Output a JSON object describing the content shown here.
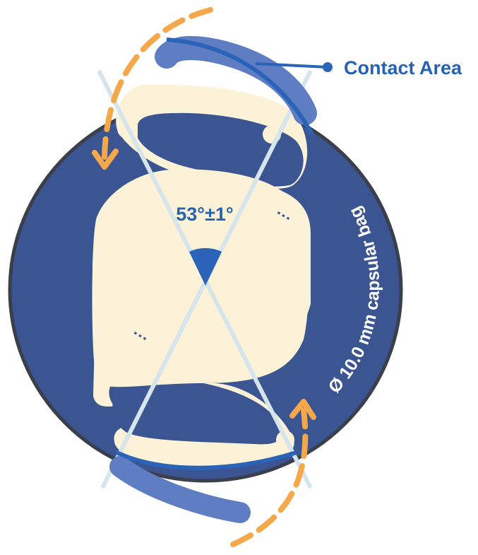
{
  "diagram": {
    "angle_label": "53°±1°",
    "contact_label": "Contact Area",
    "bag_label": "Ø 10.0 mm capsular bag",
    "dots_upper": "⋮",
    "dots_lower": "⋮",
    "colors": {
      "bag_fill": "#3a5591",
      "bag_edge": "#3a3f4b",
      "optic_fill": "#fbf2d8",
      "haptic_blue": "#5f7dc2",
      "contact_blue": "#2b63b8",
      "label_blue": "#2563b0",
      "arrow_orange": "#f5a84b",
      "guide_line": "#d6e4ec",
      "white": "#ffffff"
    }
  }
}
